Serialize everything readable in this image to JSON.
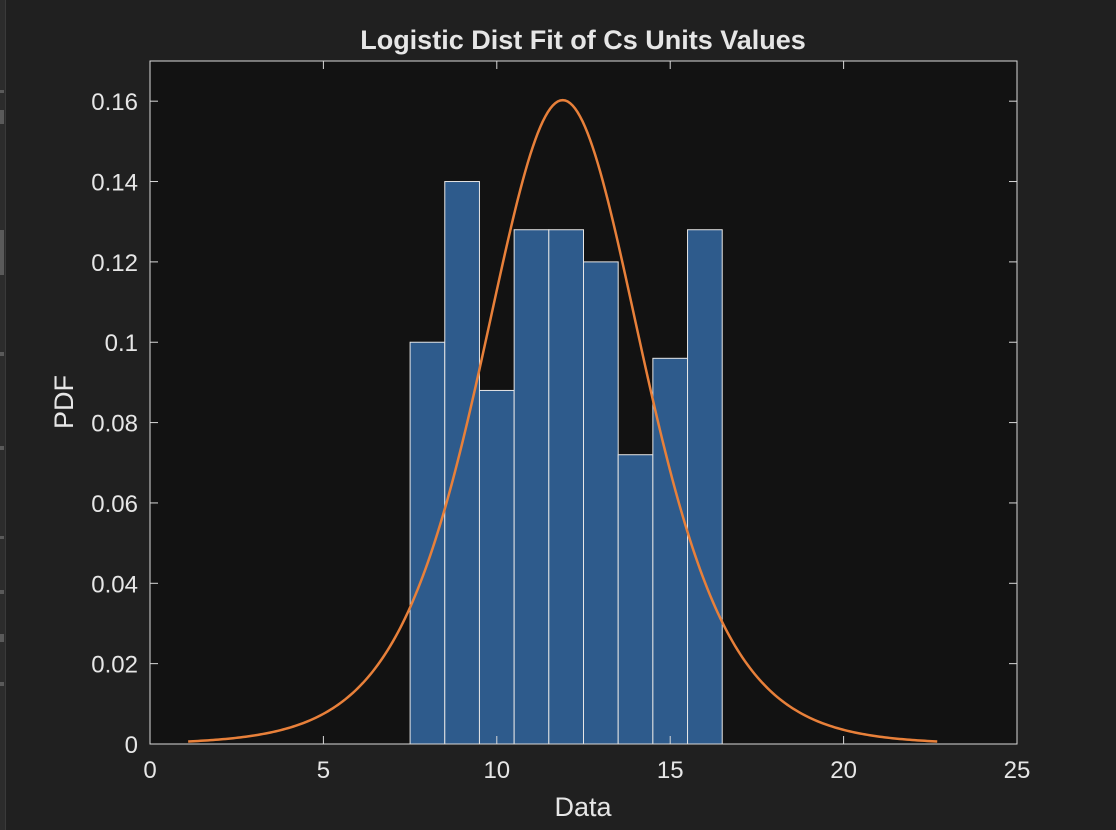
{
  "colors": {
    "background": "#202020",
    "axes_background": "#121212",
    "axis": "#d9d9d9",
    "bar_fill": "#2e5b8c",
    "bar_edge": "#e6e6e6",
    "line": "#e8803a",
    "text": "#e6e6e6"
  },
  "chart_data": {
    "type": "bar",
    "title": "Logistic Dist Fit of Cs Units Values",
    "xlabel": "Data",
    "ylabel": "PDF",
    "xlim": [
      0,
      25
    ],
    "ylim": [
      0,
      0.17
    ],
    "xticks": [
      0,
      5,
      10,
      15,
      20,
      25
    ],
    "xtick_labels": [
      "0",
      "5",
      "10",
      "15",
      "20",
      "25"
    ],
    "yticks": [
      0,
      0.02,
      0.04,
      0.06,
      0.08,
      0.1,
      0.12,
      0.14,
      0.16
    ],
    "ytick_labels": [
      "0",
      "0.02",
      "0.04",
      "0.06",
      "0.08",
      "0.1",
      "0.12",
      "0.14",
      "0.16"
    ],
    "grid": false,
    "histogram": {
      "bin_edges": [
        7.5,
        8.5,
        9.5,
        10.5,
        11.5,
        12.5,
        13.5,
        14.5,
        15.5,
        16.5
      ],
      "values": [
        0.1,
        0.14,
        0.088,
        0.128,
        0.128,
        0.12,
        0.072,
        0.096,
        0.128
      ]
    },
    "fit_curve": {
      "distribution": "logistic",
      "mu": 11.9,
      "sigma": 1.56,
      "x_range": [
        1.1,
        22.7
      ]
    }
  }
}
